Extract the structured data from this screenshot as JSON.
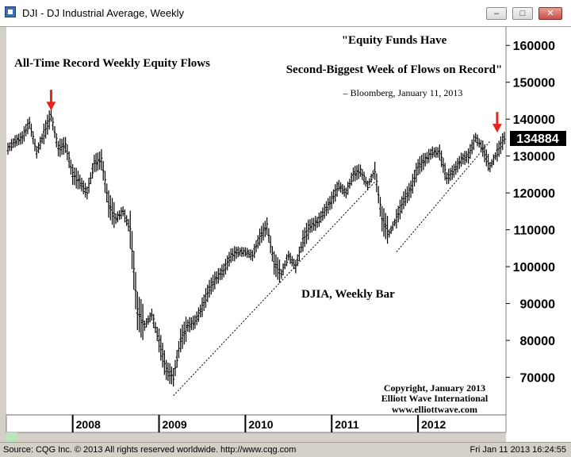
{
  "window": {
    "title": "DJI - DJ Industrial Average, Weekly",
    "minimize_label": "–",
    "maximize_label": "□",
    "close_label": "✕",
    "icon": "chart-app-icon"
  },
  "status": {
    "left": "Source: CQG Inc. © 2013 All rights reserved worldwide. http://www.cqg.com",
    "right": "Fri Jan 11 2013 16:24:55"
  },
  "colors": {
    "background": "#ffffff",
    "bars": "#000000",
    "arrow": "#e8251c",
    "price_tag_bg": "#000000",
    "price_tag_text": "#ffffff"
  },
  "chart_data": {
    "type": "bar",
    "title": "",
    "xlabel": "",
    "ylabel": "",
    "ylim": [
      60000,
      165000
    ],
    "y_ticks": [
      70000,
      80000,
      90000,
      100000,
      110000,
      120000,
      130000,
      140000,
      150000,
      160000
    ],
    "x_tick_labels": [
      "2008",
      "2009",
      "2010",
      "2011",
      "2012"
    ],
    "x_range": [
      "2007-04",
      "2013-01"
    ],
    "last_price": "134884",
    "series": [
      {
        "values": [
          {
            "date": "2007-04",
            "value": 132000
          },
          {
            "date": "2007-05",
            "value": 134000
          },
          {
            "date": "2007-06",
            "value": 135000
          },
          {
            "date": "2007-07",
            "value": 139000
          },
          {
            "date": "2007-08",
            "value": 131000
          },
          {
            "date": "2007-09",
            "value": 136000
          },
          {
            "date": "2007-10",
            "value": 141000
          },
          {
            "date": "2007-11",
            "value": 132000
          },
          {
            "date": "2007-12",
            "value": 133000
          },
          {
            "date": "2008-01",
            "value": 125000
          },
          {
            "date": "2008-02",
            "value": 123000
          },
          {
            "date": "2008-03",
            "value": 120000
          },
          {
            "date": "2008-04",
            "value": 128000
          },
          {
            "date": "2008-05",
            "value": 129000
          },
          {
            "date": "2008-06",
            "value": 117000
          },
          {
            "date": "2008-07",
            "value": 113000
          },
          {
            "date": "2008-08",
            "value": 115000
          },
          {
            "date": "2008-09",
            "value": 110000
          },
          {
            "date": "2008-10",
            "value": 88000
          },
          {
            "date": "2008-11",
            "value": 84000
          },
          {
            "date": "2008-12",
            "value": 87000
          },
          {
            "date": "2009-01",
            "value": 80000
          },
          {
            "date": "2009-02",
            "value": 72000
          },
          {
            "date": "2009-03",
            "value": 70000
          },
          {
            "date": "2009-04",
            "value": 80000
          },
          {
            "date": "2009-05",
            "value": 84000
          },
          {
            "date": "2009-06",
            "value": 85000
          },
          {
            "date": "2009-07",
            "value": 89000
          },
          {
            "date": "2009-08",
            "value": 94000
          },
          {
            "date": "2009-09",
            "value": 97000
          },
          {
            "date": "2009-10",
            "value": 99000
          },
          {
            "date": "2009-11",
            "value": 103000
          },
          {
            "date": "2009-12",
            "value": 104000
          },
          {
            "date": "2010-01",
            "value": 104000
          },
          {
            "date": "2010-02",
            "value": 103000
          },
          {
            "date": "2010-03",
            "value": 108000
          },
          {
            "date": "2010-04",
            "value": 111000
          },
          {
            "date": "2010-05",
            "value": 101000
          },
          {
            "date": "2010-06",
            "value": 98000
          },
          {
            "date": "2010-07",
            "value": 103000
          },
          {
            "date": "2010-08",
            "value": 100000
          },
          {
            "date": "2010-09",
            "value": 107000
          },
          {
            "date": "2010-10",
            "value": 111000
          },
          {
            "date": "2010-11",
            "value": 112000
          },
          {
            "date": "2010-12",
            "value": 115000
          },
          {
            "date": "2011-01",
            "value": 118000
          },
          {
            "date": "2011-02",
            "value": 122000
          },
          {
            "date": "2011-03",
            "value": 120000
          },
          {
            "date": "2011-04",
            "value": 125000
          },
          {
            "date": "2011-05",
            "value": 126000
          },
          {
            "date": "2011-06",
            "value": 122000
          },
          {
            "date": "2011-07",
            "value": 126000
          },
          {
            "date": "2011-08",
            "value": 113000
          },
          {
            "date": "2011-09",
            "value": 109000
          },
          {
            "date": "2011-10",
            "value": 113000
          },
          {
            "date": "2011-11",
            "value": 118000
          },
          {
            "date": "2011-12",
            "value": 121000
          },
          {
            "date": "2012-01",
            "value": 127000
          },
          {
            "date": "2012-02",
            "value": 129000
          },
          {
            "date": "2012-03",
            "value": 131000
          },
          {
            "date": "2012-04",
            "value": 131000
          },
          {
            "date": "2012-05",
            "value": 124000
          },
          {
            "date": "2012-06",
            "value": 126000
          },
          {
            "date": "2012-07",
            "value": 129000
          },
          {
            "date": "2012-08",
            "value": 130000
          },
          {
            "date": "2012-09",
            "value": 135000
          },
          {
            "date": "2012-10",
            "value": 132000
          },
          {
            "date": "2012-11",
            "value": 127000
          },
          {
            "date": "2012-12",
            "value": 131000
          },
          {
            "date": "2013-01",
            "value": 134884
          }
        ]
      }
    ],
    "trendlines": [
      {
        "from": {
          "date": "2009-03",
          "value": 65000
        },
        "to": {
          "date": "2011-07",
          "value": 123000
        }
      },
      {
        "from": {
          "date": "2011-10",
          "value": 104000
        },
        "to": {
          "date": "2012-11",
          "value": 134000
        }
      }
    ],
    "arrows": [
      {
        "date": "2007-10",
        "value": 141500
      },
      {
        "date": "2012-12",
        "value": 135500
      }
    ],
    "annotations": {
      "left_title": "All-Time Record Weekly Equity Flows",
      "quote_line1": "\"Equity Funds Have",
      "quote_line2": "Second-Biggest Week of Flows on Record\"",
      "quote_source": "– Bloomberg, January 11, 2013",
      "chart_label": "DJIA, Weekly Bar",
      "copyright_line1": "Copyright, January 2013",
      "copyright_line2": "Elliott Wave International",
      "copyright_line3": "www.elliottwave.com"
    }
  }
}
